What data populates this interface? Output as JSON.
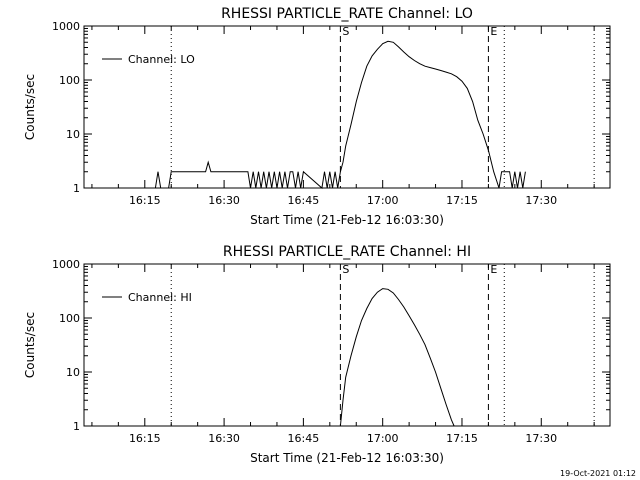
{
  "timestamp": "19-Oct-2021 01:12",
  "chart_data": [
    {
      "type": "line",
      "title": "RHESSI PARTICLE_RATE Channel: LO",
      "xlabel": "Start Time (21-Feb-12 16:03:30)",
      "ylabel": "Counts/sec",
      "xlim": [
        "16:03:30",
        "17:43:00"
      ],
      "ylim": [
        1,
        1000
      ],
      "yscale": "log",
      "xticks": [
        "16:15",
        "16:30",
        "16:45",
        "17:00",
        "17:15",
        "17:30"
      ],
      "yticks": [
        "1",
        "10",
        "100",
        "1000"
      ],
      "legend": {
        "entry": "Channel: LO",
        "placement": "top-left"
      },
      "markers": [
        {
          "label": "",
          "time": "16:20:00",
          "style": "dotted"
        },
        {
          "label": "S",
          "time": "16:52:00",
          "style": "dashed"
        },
        {
          "label": "E",
          "time": "17:20:00",
          "style": "dashed"
        },
        {
          "label": "",
          "time": "17:23:00",
          "style": "dotted"
        },
        {
          "label": "",
          "time": "17:40:00",
          "style": "dotted"
        }
      ],
      "series": [
        {
          "name": "Channel: LO",
          "x": [
            "16:17:00",
            "16:17:30",
            "16:18:00",
            "16:19:30",
            "16:20:00",
            "16:20:30",
            "16:21:00",
            "16:21:30",
            "16:26:00",
            "16:26:30",
            "16:27:00",
            "16:27:30",
            "16:28:00",
            "16:28:30",
            "16:29:00",
            "16:29:30",
            "16:30:00",
            "16:30:30",
            "16:34:00",
            "16:34:30",
            "16:35:00",
            "16:35:30",
            "16:36:00",
            "16:36:30",
            "16:37:00",
            "16:37:30",
            "16:38:00",
            "16:38:30",
            "16:39:00",
            "16:39:30",
            "16:40:00",
            "16:40:30",
            "16:41:00",
            "16:41:30",
            "16:42:00",
            "16:42:30",
            "16:43:00",
            "16:43:30",
            "16:44:00",
            "16:44:30",
            "16:45:00",
            "16:48:30",
            "16:49:00",
            "16:49:30",
            "16:50:00",
            "16:50:30",
            "16:51:00",
            "16:51:30",
            "16:52:00",
            "16:52:30",
            "16:53:00",
            "16:54:00",
            "16:55:00",
            "16:56:00",
            "16:57:00",
            "16:58:00",
            "16:59:00",
            "17:00:00",
            "17:01:00",
            "17:02:00",
            "17:03:00",
            "17:04:00",
            "17:05:00",
            "17:06:00",
            "17:07:00",
            "17:08:00",
            "17:09:00",
            "17:10:00",
            "17:11:00",
            "17:12:00",
            "17:13:00",
            "17:14:00",
            "17:15:00",
            "17:16:00",
            "17:17:00",
            "17:18:00",
            "17:19:00",
            "17:20:00",
            "17:21:00",
            "17:22:00",
            "17:22:30",
            "17:23:00",
            "17:23:30",
            "17:24:00",
            "17:24:30",
            "17:25:00",
            "17:25:30",
            "17:26:00",
            "17:26:30",
            "17:27:00"
          ],
          "y": [
            1,
            2,
            1,
            1,
            2,
            2,
            2,
            2,
            2,
            2,
            3,
            2,
            2,
            2,
            2,
            2,
            2,
            2,
            2,
            2,
            1,
            2,
            1,
            2,
            1,
            2,
            1,
            2,
            1,
            2,
            1,
            2,
            1,
            2,
            1,
            2,
            2,
            1,
            2,
            1,
            2,
            1,
            2,
            1,
            2,
            1,
            2,
            1,
            2,
            3,
            6,
            15,
            40,
            90,
            180,
            280,
            370,
            470,
            520,
            500,
            410,
            330,
            270,
            230,
            200,
            180,
            170,
            160,
            150,
            140,
            130,
            115,
            95,
            70,
            40,
            18,
            10,
            5,
            2,
            1,
            2,
            2,
            2,
            2,
            1,
            2,
            1,
            2,
            1,
            2
          ]
        }
      ]
    },
    {
      "type": "line",
      "title": "RHESSI PARTICLE_RATE Channel: HI",
      "xlabel": "Start Time (21-Feb-12 16:03:30)",
      "ylabel": "Counts/sec",
      "xlim": [
        "16:03:30",
        "17:43:00"
      ],
      "ylim": [
        1,
        1000
      ],
      "yscale": "log",
      "xticks": [
        "16:15",
        "16:30",
        "16:45",
        "17:00",
        "17:15",
        "17:30"
      ],
      "yticks": [
        "1",
        "10",
        "100",
        "1000"
      ],
      "legend": {
        "entry": "Channel: HI",
        "placement": "top-left"
      },
      "markers": [
        {
          "label": "",
          "time": "16:20:00",
          "style": "dotted"
        },
        {
          "label": "S",
          "time": "16:52:00",
          "style": "dashed"
        },
        {
          "label": "E",
          "time": "17:20:00",
          "style": "dashed"
        },
        {
          "label": "",
          "time": "17:23:00",
          "style": "dotted"
        },
        {
          "label": "",
          "time": "17:40:00",
          "style": "dotted"
        }
      ],
      "series": [
        {
          "name": "Channel: HI",
          "x": [
            "16:52:00",
            "16:52:30",
            "16:53:00",
            "16:54:00",
            "16:55:00",
            "16:56:00",
            "16:57:00",
            "16:58:00",
            "16:59:00",
            "17:00:00",
            "17:01:00",
            "17:02:00",
            "17:03:00",
            "17:04:00",
            "17:05:00",
            "17:06:00",
            "17:07:00",
            "17:08:00",
            "17:09:00",
            "17:10:00",
            "17:11:00",
            "17:12:00",
            "17:13:00",
            "17:13:30"
          ],
          "y": [
            1,
            3,
            8,
            20,
            45,
            90,
            150,
            230,
            300,
            350,
            340,
            290,
            220,
            160,
            110,
            75,
            50,
            32,
            18,
            10,
            5,
            2.5,
            1.3,
            1
          ]
        }
      ]
    }
  ]
}
